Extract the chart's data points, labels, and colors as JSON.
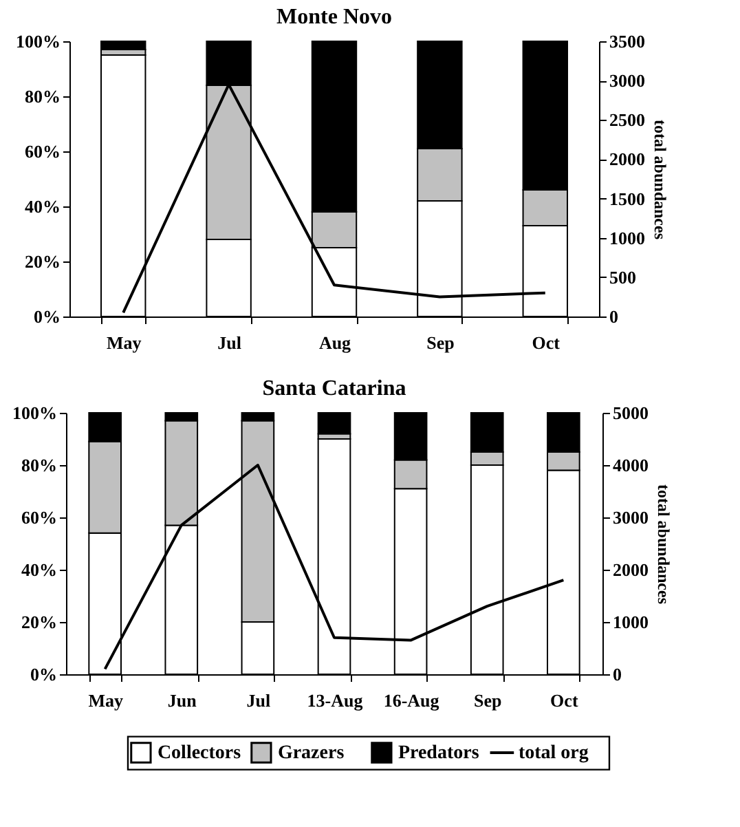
{
  "chart_data": [
    {
      "type": "bar",
      "title": "Monte Novo",
      "stacked": true,
      "categories": [
        "May",
        "Jul",
        "Aug",
        "Sep",
        "Oct"
      ],
      "series": [
        {
          "color": "#ffffff",
          "values": [
            95,
            28,
            25,
            42,
            33
          ]
        },
        {
          "color": "#c0c0c0",
          "values": [
            2,
            56,
            13,
            19,
            13
          ]
        },
        {
          "color": "#000000",
          "values": [
            3,
            16,
            62,
            39,
            54
          ]
        },
        {
          "type": "line",
          "axis": "y2",
          "color": "#000000",
          "values": [
            50,
            2950,
            400,
            250,
            300
          ]
        }
      ],
      "ylim": [
        0,
        100
      ],
      "yticks": [
        {
          "value": 0,
          "label": "0%"
        },
        {
          "value": 20,
          "label": "20%"
        },
        {
          "value": 40,
          "label": "40%"
        },
        {
          "value": 60,
          "label": "60%"
        },
        {
          "value": 80,
          "label": "80%"
        },
        {
          "value": 100,
          "label": "100%"
        }
      ],
      "y2lim": [
        0,
        3500
      ],
      "y2ticks": [
        0,
        500,
        1000,
        1500,
        2000,
        2500,
        3000,
        3500
      ],
      "y2label": "total abundances"
    },
    {
      "type": "bar",
      "title": "Santa Catarina",
      "stacked": true,
      "categories": [
        "May",
        "Jun",
        "Jul",
        "13-Aug",
        "16-Aug",
        "Sep",
        "Oct"
      ],
      "series": [
        {
          "name": "Collectors",
          "color": "#ffffff",
          "values": [
            54,
            57,
            20,
            90,
            71,
            80,
            78
          ]
        },
        {
          "name": "Grazers",
          "color": "#c0c0c0",
          "values": [
            35,
            40,
            77,
            2,
            11,
            5,
            7
          ]
        },
        {
          "name": "Predators",
          "color": "#000000",
          "values": [
            11,
            3,
            3,
            8,
            18,
            15,
            15
          ]
        },
        {
          "name": "total org",
          "type": "line",
          "axis": "y2",
          "color": "#000000",
          "values": [
            100,
            2850,
            4000,
            700,
            650,
            1300,
            1800
          ]
        }
      ],
      "ylim": [
        0,
        100
      ],
      "yticks": [
        {
          "value": 0,
          "label": "0%"
        },
        {
          "value": 20,
          "label": "20%"
        },
        {
          "value": 40,
          "label": "40%"
        },
        {
          "value": 60,
          "label": "60%"
        },
        {
          "value": 80,
          "label": "80%"
        },
        {
          "value": 100,
          "label": "100%"
        }
      ],
      "y2lim": [
        0,
        5000
      ],
      "y2ticks": [
        0,
        1000,
        2000,
        3000,
        4000,
        5000
      ],
      "y2label": "total abundances",
      "legend": "bottom"
    }
  ]
}
